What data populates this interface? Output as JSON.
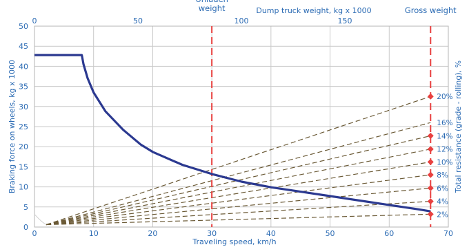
{
  "chart_data": {
    "type": "line",
    "title": "",
    "xlabel": "Traveling speed, km/h",
    "ylabel": "Braking force on wheels, kg x 1000",
    "y2label": "Total resistance (grade - rolling), %",
    "x2label": "Dump truck weight, kg x 1000",
    "xlim": [
      0,
      70
    ],
    "ylim": [
      0,
      50
    ],
    "x2lim": [
      0,
      200
    ],
    "x_ticks": [
      "0",
      "10",
      "20",
      "30",
      "40",
      "50",
      "60",
      "70"
    ],
    "y_ticks": [
      "0",
      "5",
      "10",
      "15",
      "20",
      "25",
      "30",
      "35",
      "40",
      "45",
      "50"
    ],
    "x2_ticks": [
      "0",
      "50",
      "100",
      "150"
    ],
    "grid": true,
    "series": [
      {
        "x": [
          0,
          8,
          8.3,
          9,
          10,
          12,
          15,
          18,
          20,
          25,
          30,
          35,
          40,
          45,
          50,
          55,
          60,
          65,
          67
        ],
        "y": [
          42.8,
          42.8,
          40.5,
          37.0,
          33.5,
          28.8,
          24.2,
          20.5,
          18.7,
          15.5,
          13.2,
          11.3,
          9.9,
          8.8,
          7.7,
          6.6,
          5.5,
          4.4,
          3.9
        ]
      }
    ],
    "reference_lines": [
      {
        "label_lines": [
          "Unladen",
          "weight"
        ],
        "x": 30
      },
      {
        "label_lines": [
          "Gross weight"
        ],
        "x": 67
      }
    ],
    "resistance_lines": {
      "origin": [
        2,
        0.6
      ],
      "end_x": 67,
      "levels": [
        {
          "label": "2%",
          "y": 3.2,
          "marker": true
        },
        {
          "label": "4%",
          "y": 6.4,
          "marker": true
        },
        {
          "label": "6%",
          "y": 9.7,
          "marker": true
        },
        {
          "label": "8%",
          "y": 13.0,
          "marker": true
        },
        {
          "label": "10%",
          "y": 16.2,
          "marker": true
        },
        {
          "label": "12%",
          "y": 19.4,
          "marker": true
        },
        {
          "label": "14%",
          "y": 22.7,
          "marker": true
        },
        {
          "label": "16%",
          "y": 26.0,
          "marker": false
        },
        {
          "label": "20%",
          "y": 32.5,
          "marker": true
        }
      ]
    },
    "colors": {
      "curve": "#2b3990",
      "grid": "#c9c9c9",
      "dashed_lines": "#6b5a36",
      "reference_lines": "#e8403f",
      "markers": "#e8403f",
      "text": "#2a6ab3"
    }
  }
}
